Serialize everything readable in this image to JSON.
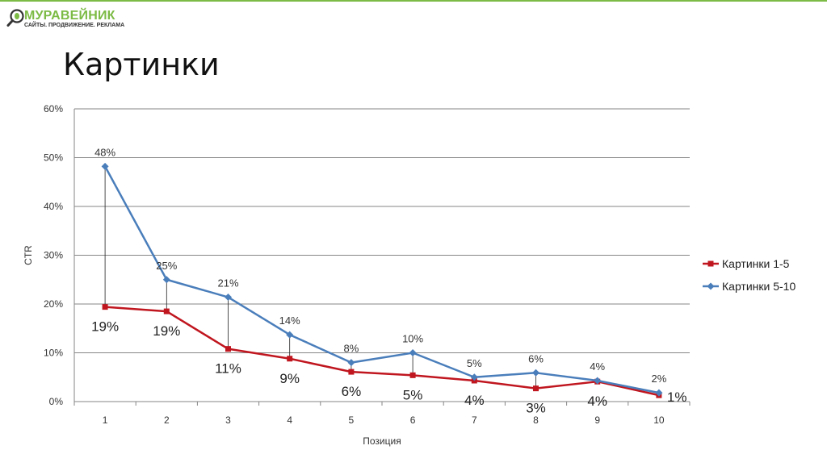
{
  "logo": {
    "name": "МУРАВЕЙНИК",
    "tagline": "САЙТЫ. ПРОДВИЖЕНИЕ. РЕКЛАМА",
    "accent_color": "#7cbb45"
  },
  "page": {
    "title": "Картинки"
  },
  "chart_data": {
    "type": "line",
    "title": "",
    "xlabel": "Позиция",
    "ylabel": "CTR",
    "categories": [
      "1",
      "2",
      "3",
      "4",
      "5",
      "6",
      "7",
      "8",
      "9",
      "10"
    ],
    "ylim": [
      0,
      60
    ],
    "yticks": [
      "0%",
      "10%",
      "20%",
      "30%",
      "40%",
      "50%",
      "60%"
    ],
    "grid": true,
    "legend_position": "right",
    "drop_lines": true,
    "series": [
      {
        "name": "Картинки 1-5",
        "color": "#c0161f",
        "marker": "square",
        "values": [
          19.4,
          18.5,
          10.8,
          8.8,
          6.1,
          5.4,
          4.3,
          2.7,
          4.1,
          1.3
        ],
        "data_labels": [
          "19%",
          "19%",
          "11%",
          "9%",
          "6%",
          "5%",
          "4%",
          "3%",
          "4%",
          "1%"
        ]
      },
      {
        "name": "Картинки 5-10",
        "color": "#4a7ebb",
        "marker": "diamond",
        "values": [
          48.2,
          25.0,
          21.4,
          13.7,
          8.0,
          10.0,
          5.0,
          5.9,
          4.3,
          1.8
        ],
        "data_labels": [
          "48%",
          "25%",
          "21%",
          "14%",
          "8%",
          "10%",
          "5%",
          "6%",
          "4%",
          "2%"
        ]
      }
    ]
  }
}
